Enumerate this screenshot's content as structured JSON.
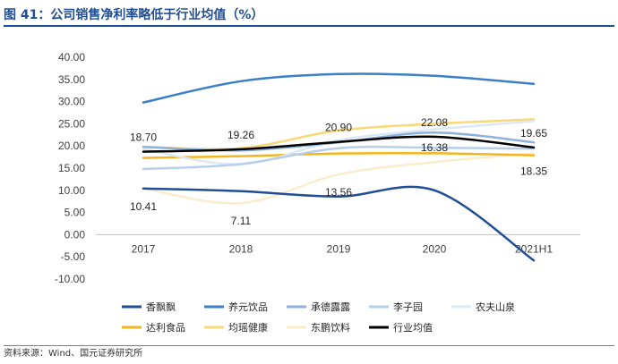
{
  "header": {
    "title": "图 41：公司销售净利率略低于行业均值（%）"
  },
  "footer": {
    "source": "资料来源：Wind、国元证券研究所"
  },
  "chart_data": {
    "type": "line",
    "title": "图 41：公司销售净利率略低于行业均值（%）",
    "xlabel": "",
    "ylabel": "",
    "categories": [
      "2017",
      "2018",
      "2019",
      "2020",
      "2021H1"
    ],
    "ylim": [
      -10,
      40
    ],
    "yticks": [
      "40.00",
      "35.00",
      "30.00",
      "25.00",
      "20.00",
      "15.00",
      "10.00",
      "5.00",
      "0.00",
      "-5.00",
      "-10.00"
    ],
    "ytick_values": [
      40,
      35,
      30,
      25,
      20,
      15,
      10,
      5,
      0,
      -5,
      -10
    ],
    "legend_position": "bottom",
    "series": [
      {
        "name": "香飘飘",
        "color": "#1f4e96",
        "values": [
          10.41,
          9.8,
          8.6,
          10.0,
          -5.8
        ]
      },
      {
        "name": "养元饮品",
        "color": "#3c7fc8",
        "values": [
          29.8,
          34.6,
          36.2,
          35.8,
          34.0
        ]
      },
      {
        "name": "承德露露",
        "color": "#8eb1dc",
        "values": [
          19.8,
          19.0,
          20.8,
          23.0,
          20.8
        ]
      },
      {
        "name": "李子园",
        "color": "#b7cde9",
        "values": [
          14.8,
          15.9,
          19.5,
          19.6,
          19.4
        ]
      },
      {
        "name": "农夫山泉",
        "color": "#dce8f5",
        "values": [
          19.3,
          15.9,
          21.3,
          23.7,
          25.6
        ]
      },
      {
        "name": "达利食品",
        "color": "#f2b51e",
        "values": [
          17.3,
          17.7,
          18.3,
          18.35,
          17.9
        ]
      },
      {
        "name": "均瑶健康",
        "color": "#f8d877",
        "values": [
          19.8,
          19.5,
          23.5,
          25.0,
          26.0
        ]
      },
      {
        "name": "东鹏饮料",
        "color": "#fbeccb",
        "values": [
          10.41,
          7.11,
          13.56,
          16.38,
          18.35
        ]
      },
      {
        "name": "行业均值",
        "color": "#000000",
        "values": [
          18.7,
          19.26,
          20.9,
          22.08,
          19.65
        ]
      }
    ],
    "annotations": [
      {
        "text": "18.70",
        "x": "2017",
        "y": 18.7,
        "placement": "above"
      },
      {
        "text": "19.26",
        "x": "2018",
        "y": 19.26,
        "placement": "above"
      },
      {
        "text": "20.90",
        "x": "2019",
        "y": 20.9,
        "placement": "above"
      },
      {
        "text": "22.08",
        "x": "2020",
        "y": 22.08,
        "placement": "above"
      },
      {
        "text": "19.65",
        "x": "2021H1",
        "y": 19.65,
        "placement": "above"
      },
      {
        "text": "10.41",
        "x": "2017",
        "y": 10.41,
        "placement": "below"
      },
      {
        "text": "7.11",
        "x": "2018",
        "y": 7.11,
        "placement": "below"
      },
      {
        "text": "13.56",
        "x": "2019",
        "y": 13.56,
        "placement": "below"
      },
      {
        "text": "16.38",
        "x": "2020",
        "y": 16.38,
        "placement": "above"
      },
      {
        "text": "18.35",
        "x": "2021H1",
        "y": 18.35,
        "placement": "below"
      }
    ]
  }
}
